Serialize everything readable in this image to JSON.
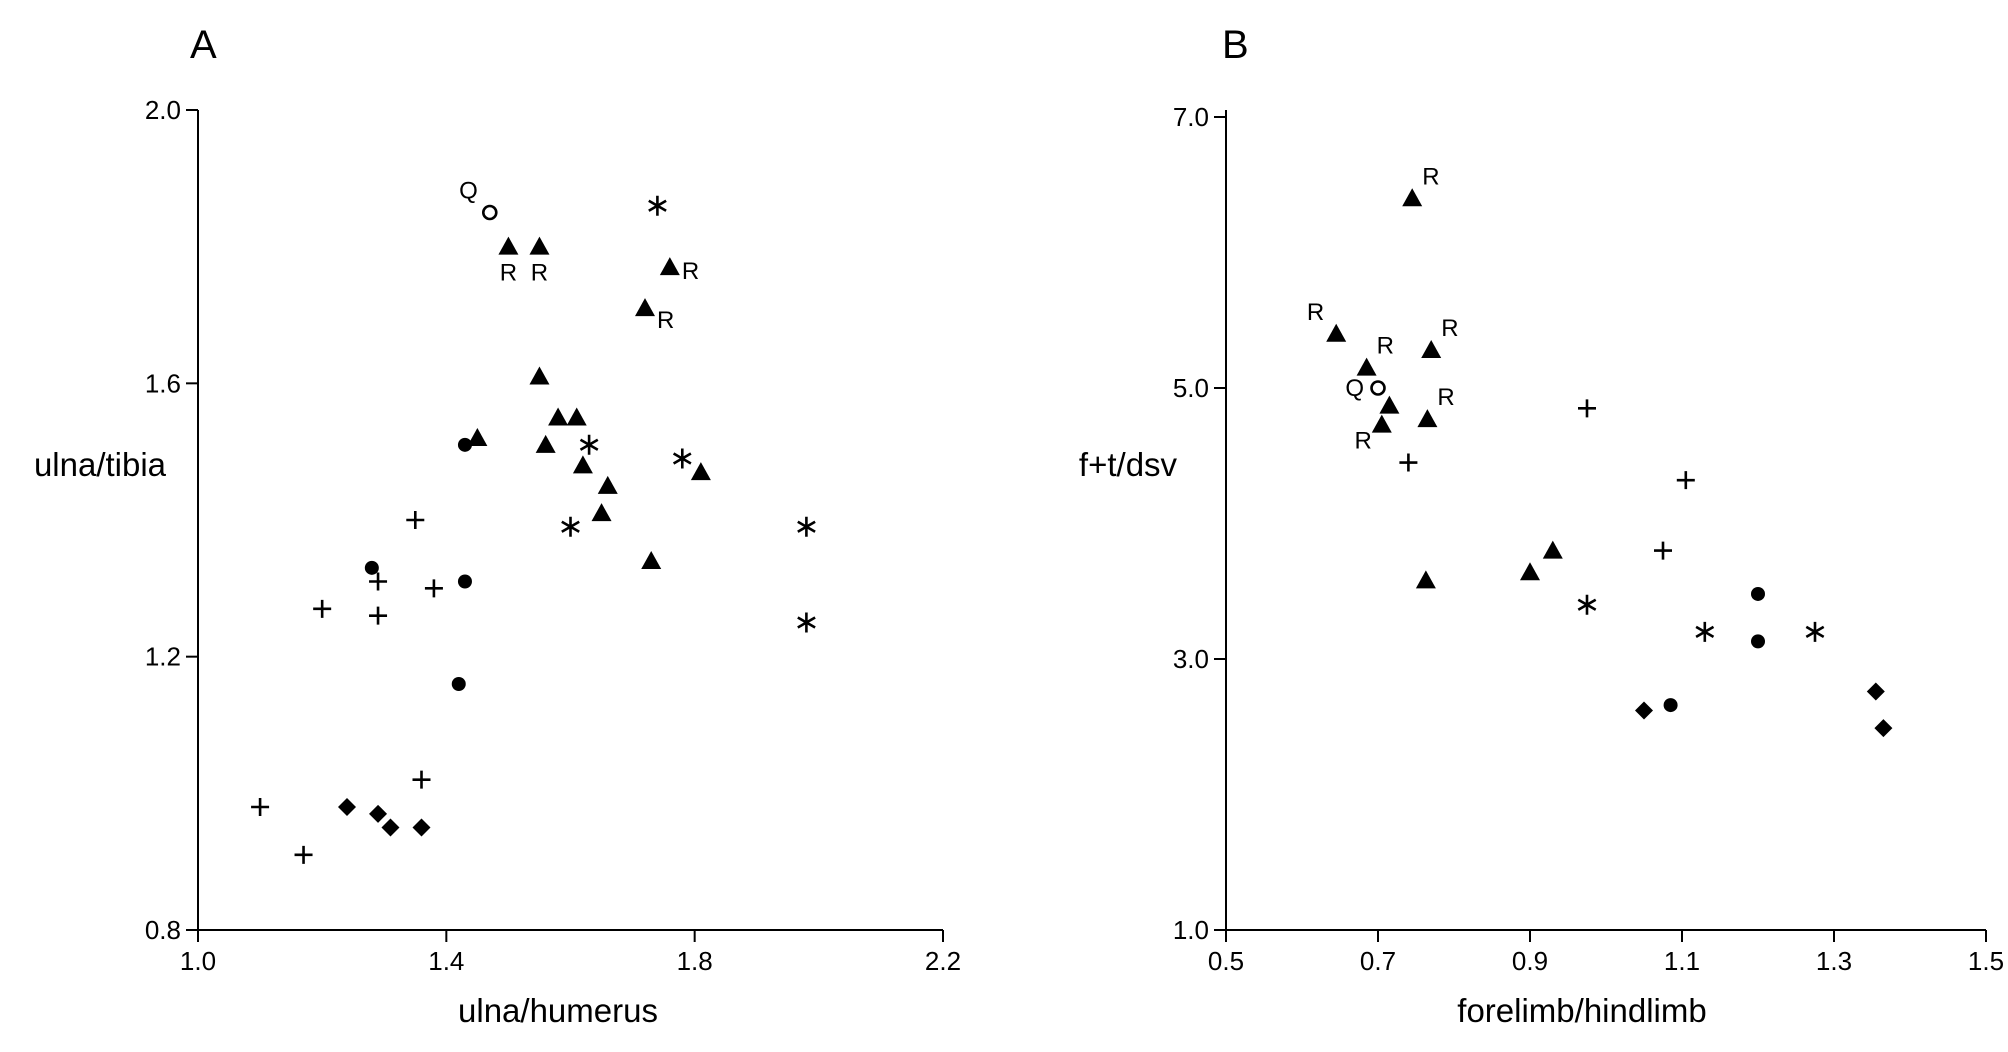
{
  "chart_data": [
    {
      "type": "scatter",
      "panel_label": "A",
      "xlabel": "ulna/humerus",
      "ylabel": "ulna/tibia",
      "xlim": [
        1.0,
        2.2
      ],
      "ylim": [
        0.8,
        2.0
      ],
      "xticks": [
        "1.0",
        "1.4",
        "1.8",
        "2.2"
      ],
      "yticks": [
        "0.8",
        "1.2",
        "1.6",
        "2.0"
      ],
      "grid": false,
      "points": [
        {
          "x": 1.47,
          "y": 1.85,
          "marker": "open-circle",
          "label": "Q",
          "label_pos": "upper-left"
        },
        {
          "x": 1.5,
          "y": 1.8,
          "marker": "triangle",
          "label": "R",
          "label_pos": "below"
        },
        {
          "x": 1.55,
          "y": 1.8,
          "marker": "triangle",
          "label": "R",
          "label_pos": "below"
        },
        {
          "x": 1.76,
          "y": 1.77,
          "marker": "triangle",
          "label": "R",
          "label_pos": "right"
        },
        {
          "x": 1.72,
          "y": 1.71,
          "marker": "triangle",
          "label": "R",
          "label_pos": "lower-right"
        },
        {
          "x": 1.55,
          "y": 1.61,
          "marker": "triangle"
        },
        {
          "x": 1.58,
          "y": 1.55,
          "marker": "triangle"
        },
        {
          "x": 1.61,
          "y": 1.55,
          "marker": "triangle"
        },
        {
          "x": 1.45,
          "y": 1.52,
          "marker": "triangle"
        },
        {
          "x": 1.56,
          "y": 1.51,
          "marker": "triangle"
        },
        {
          "x": 1.62,
          "y": 1.48,
          "marker": "triangle"
        },
        {
          "x": 1.81,
          "y": 1.47,
          "marker": "triangle"
        },
        {
          "x": 1.66,
          "y": 1.45,
          "marker": "triangle"
        },
        {
          "x": 1.65,
          "y": 1.41,
          "marker": "triangle"
        },
        {
          "x": 1.73,
          "y": 1.34,
          "marker": "triangle"
        },
        {
          "x": 1.74,
          "y": 1.86,
          "marker": "asterisk"
        },
        {
          "x": 1.63,
          "y": 1.51,
          "marker": "asterisk"
        },
        {
          "x": 1.78,
          "y": 1.49,
          "marker": "asterisk"
        },
        {
          "x": 1.6,
          "y": 1.39,
          "marker": "asterisk"
        },
        {
          "x": 1.98,
          "y": 1.39,
          "marker": "asterisk"
        },
        {
          "x": 1.98,
          "y": 1.25,
          "marker": "asterisk"
        },
        {
          "x": 1.43,
          "y": 1.51,
          "marker": "circle"
        },
        {
          "x": 1.28,
          "y": 1.33,
          "marker": "circle"
        },
        {
          "x": 1.43,
          "y": 1.31,
          "marker": "circle"
        },
        {
          "x": 1.42,
          "y": 1.16,
          "marker": "circle"
        },
        {
          "x": 1.35,
          "y": 1.4,
          "marker": "plus"
        },
        {
          "x": 1.29,
          "y": 1.31,
          "marker": "plus"
        },
        {
          "x": 1.38,
          "y": 1.3,
          "marker": "plus"
        },
        {
          "x": 1.2,
          "y": 1.27,
          "marker": "plus"
        },
        {
          "x": 1.29,
          "y": 1.26,
          "marker": "plus"
        },
        {
          "x": 1.36,
          "y": 1.02,
          "marker": "plus"
        },
        {
          "x": 1.1,
          "y": 0.98,
          "marker": "plus"
        },
        {
          "x": 1.17,
          "y": 0.91,
          "marker": "plus"
        },
        {
          "x": 1.24,
          "y": 0.98,
          "marker": "diamond"
        },
        {
          "x": 1.29,
          "y": 0.97,
          "marker": "diamond"
        },
        {
          "x": 1.31,
          "y": 0.95,
          "marker": "diamond"
        },
        {
          "x": 1.36,
          "y": 0.95,
          "marker": "diamond"
        }
      ]
    },
    {
      "type": "scatter",
      "panel_label": "B",
      "xlabel": "forelimb/hindlimb",
      "ylabel": "f+t/dsv",
      "xlim": [
        0.5,
        1.5
      ],
      "ylim": [
        1.0,
        7.0
      ],
      "xticks": [
        "0.5",
        "0.7",
        "0.9",
        "1.1",
        "1.3",
        "1.5"
      ],
      "yticks": [
        "1.0",
        "3.0",
        "5.0",
        "7.0"
      ],
      "grid": false,
      "points": [
        {
          "x": 0.745,
          "y": 6.4,
          "marker": "triangle",
          "label": "R",
          "label_pos": "upper-right"
        },
        {
          "x": 0.645,
          "y": 5.4,
          "marker": "triangle",
          "label": "R",
          "label_pos": "upper-left"
        },
        {
          "x": 0.77,
          "y": 5.28,
          "marker": "triangle",
          "label": "R",
          "label_pos": "upper-right"
        },
        {
          "x": 0.685,
          "y": 5.15,
          "marker": "triangle",
          "label": "R",
          "label_pos": "upper-right"
        },
        {
          "x": 0.715,
          "y": 4.87,
          "marker": "triangle"
        },
        {
          "x": 0.765,
          "y": 4.77,
          "marker": "triangle",
          "label": "R",
          "label_pos": "upper-right"
        },
        {
          "x": 0.705,
          "y": 4.73,
          "marker": "triangle",
          "label": "R",
          "label_pos": "lower-left"
        },
        {
          "x": 0.93,
          "y": 3.8,
          "marker": "triangle"
        },
        {
          "x": 0.9,
          "y": 3.64,
          "marker": "triangle"
        },
        {
          "x": 0.763,
          "y": 3.58,
          "marker": "triangle"
        },
        {
          "x": 0.7,
          "y": 5.0,
          "marker": "open-circle",
          "label": "Q",
          "label_pos": "left"
        },
        {
          "x": 0.975,
          "y": 4.85,
          "marker": "plus"
        },
        {
          "x": 0.74,
          "y": 4.45,
          "marker": "plus"
        },
        {
          "x": 1.105,
          "y": 4.32,
          "marker": "plus"
        },
        {
          "x": 1.075,
          "y": 3.8,
          "marker": "plus"
        },
        {
          "x": 0.975,
          "y": 3.4,
          "marker": "asterisk"
        },
        {
          "x": 1.13,
          "y": 3.2,
          "marker": "asterisk"
        },
        {
          "x": 1.275,
          "y": 3.2,
          "marker": "asterisk"
        },
        {
          "x": 1.2,
          "y": 3.48,
          "marker": "circle"
        },
        {
          "x": 1.2,
          "y": 3.13,
          "marker": "circle"
        },
        {
          "x": 1.085,
          "y": 2.66,
          "marker": "circle"
        },
        {
          "x": 1.05,
          "y": 2.62,
          "marker": "diamond"
        },
        {
          "x": 1.355,
          "y": 2.76,
          "marker": "diamond"
        },
        {
          "x": 1.365,
          "y": 2.49,
          "marker": "diamond"
        }
      ]
    }
  ]
}
